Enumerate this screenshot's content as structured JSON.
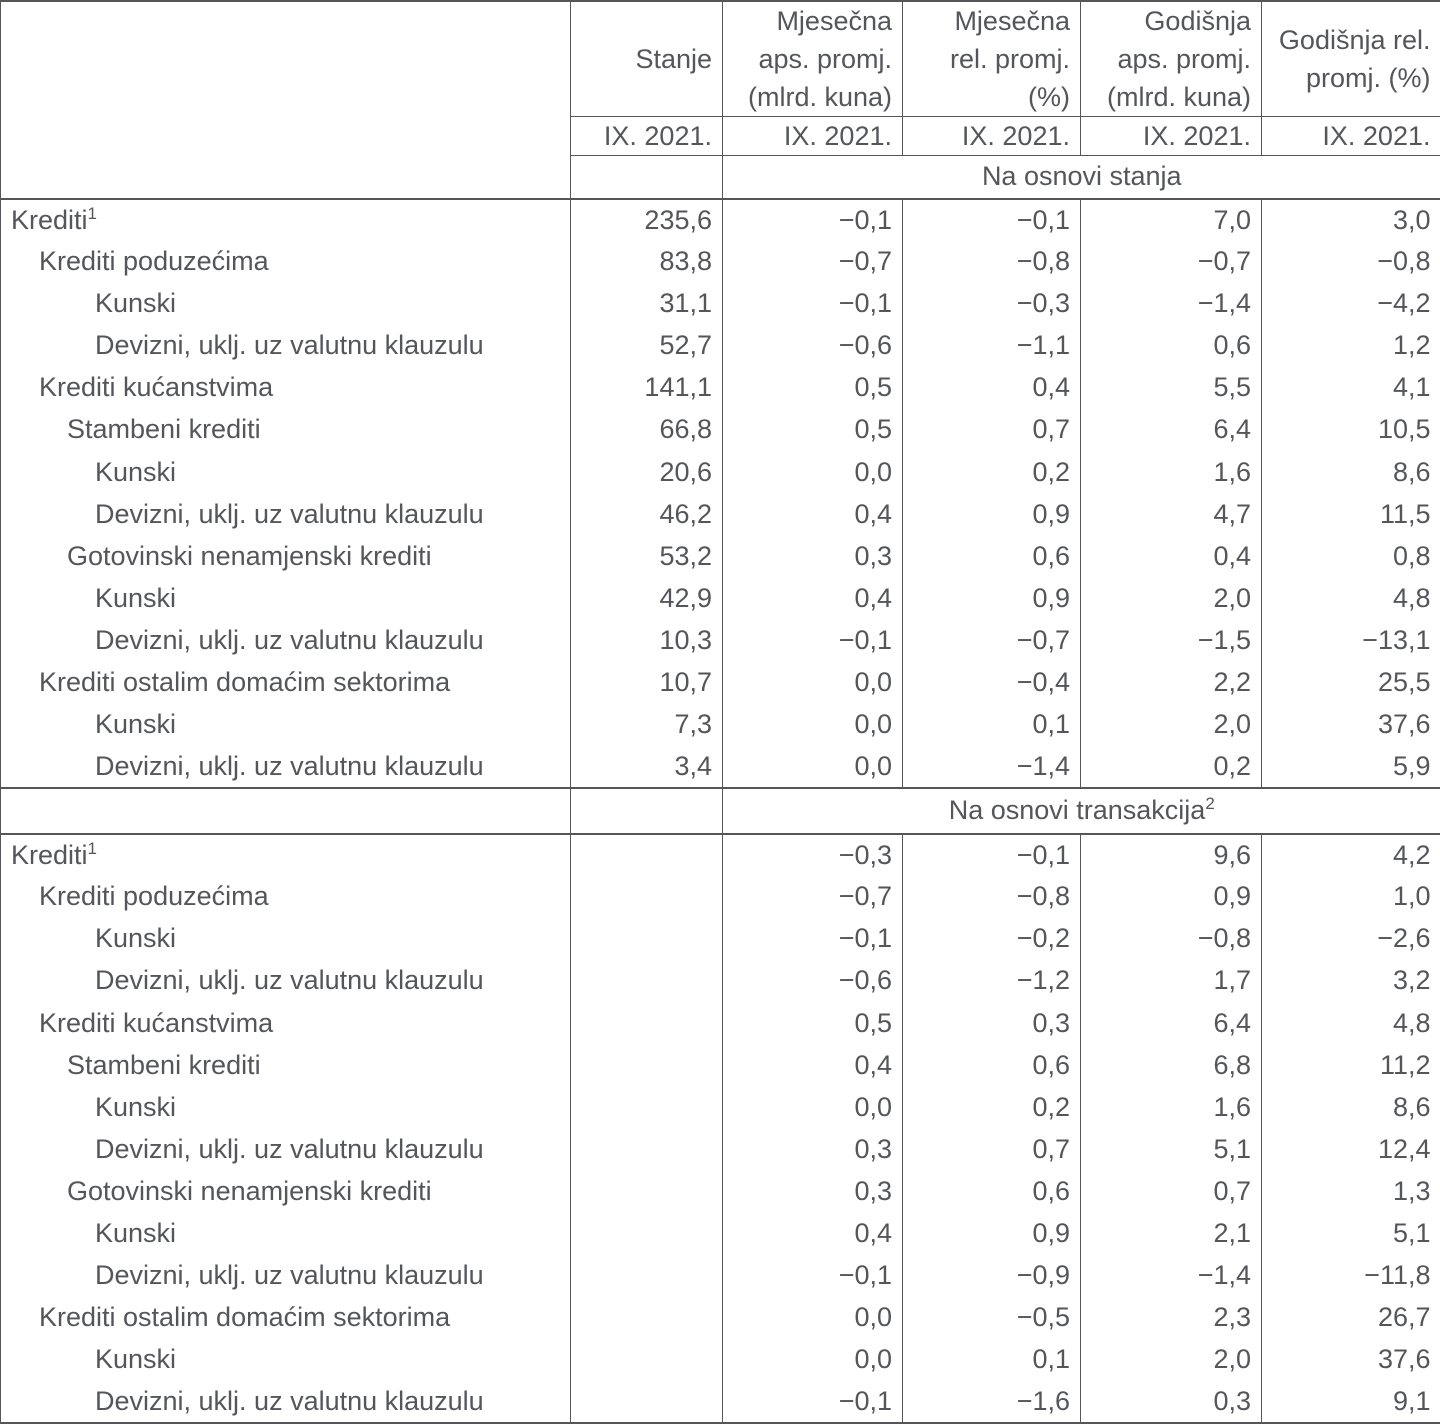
{
  "table": {
    "period": "IX. 2021.",
    "colors": {
      "text": "#54565a",
      "line": "#54565a",
      "background": "#ffffff"
    },
    "columns": [
      {
        "id": "stanje",
        "lines": [
          "Stanje"
        ]
      },
      {
        "id": "mjesecna_aps_promj",
        "lines": [
          "Mjesečna",
          "aps. promj.",
          "(mlrd. kuna)"
        ]
      },
      {
        "id": "mjesecna_rel_promj",
        "lines": [
          "Mjesečna",
          "rel. promj.",
          "(%)"
        ]
      },
      {
        "id": "godisnja_aps_promj",
        "lines": [
          "Godišnja",
          "aps. promj.",
          "(mlrd. kuna)"
        ]
      },
      {
        "id": "godisnja_rel_promj",
        "lines": [
          "Godišnja rel.",
          "promj. (%)"
        ]
      }
    ],
    "sections": [
      {
        "title": "Na osnovi stanja",
        "title_sup": "",
        "rows": [
          {
            "label": "Krediti",
            "sup": "1",
            "indent": 0,
            "values": [
              "235,6",
              "−0,1",
              "−0,1",
              "7,0",
              "3,0"
            ]
          },
          {
            "label": "Krediti poduzećima",
            "sup": "",
            "indent": 1,
            "values": [
              "83,8",
              "−0,7",
              "−0,8",
              "−0,7",
              "−0,8"
            ]
          },
          {
            "label": "Kunski",
            "sup": "",
            "indent": 3,
            "values": [
              "31,1",
              "−0,1",
              "−0,3",
              "−1,4",
              "−4,2"
            ]
          },
          {
            "label": "Devizni, uklj. uz valutnu klauzulu",
            "sup": "",
            "indent": 3,
            "values": [
              "52,7",
              "−0,6",
              "−1,1",
              "0,6",
              "1,2"
            ]
          },
          {
            "label": "Krediti kućanstvima",
            "sup": "",
            "indent": 1,
            "values": [
              "141,1",
              "0,5",
              "0,4",
              "5,5",
              "4,1"
            ]
          },
          {
            "label": "Stambeni krediti",
            "sup": "",
            "indent": 2,
            "values": [
              "66,8",
              "0,5",
              "0,7",
              "6,4",
              "10,5"
            ]
          },
          {
            "label": "Kunski",
            "sup": "",
            "indent": 3,
            "values": [
              "20,6",
              "0,0",
              "0,2",
              "1,6",
              "8,6"
            ]
          },
          {
            "label": "Devizni, uklj. uz valutnu klauzulu",
            "sup": "",
            "indent": 3,
            "values": [
              "46,2",
              "0,4",
              "0,9",
              "4,7",
              "11,5"
            ]
          },
          {
            "label": "Gotovinski nenamjenski krediti",
            "sup": "",
            "indent": 2,
            "values": [
              "53,2",
              "0,3",
              "0,6",
              "0,4",
              "0,8"
            ]
          },
          {
            "label": "Kunski",
            "sup": "",
            "indent": 3,
            "values": [
              "42,9",
              "0,4",
              "0,9",
              "2,0",
              "4,8"
            ]
          },
          {
            "label": "Devizni, uklj. uz valutnu klauzulu",
            "sup": "",
            "indent": 3,
            "values": [
              "10,3",
              "−0,1",
              "−0,7",
              "−1,5",
              "−13,1"
            ]
          },
          {
            "label": "Krediti ostalim domaćim sektorima",
            "sup": "",
            "indent": 1,
            "values": [
              "10,7",
              "0,0",
              "−0,4",
              "2,2",
              "25,5"
            ]
          },
          {
            "label": "Kunski",
            "sup": "",
            "indent": 3,
            "values": [
              "7,3",
              "0,0",
              "0,1",
              "2,0",
              "37,6"
            ]
          },
          {
            "label": "Devizni, uklj. uz valutnu klauzulu",
            "sup": "",
            "indent": 3,
            "values": [
              "3,4",
              "0,0",
              "−1,4",
              "0,2",
              "5,9"
            ]
          }
        ]
      },
      {
        "title": "Na osnovi transakcija",
        "title_sup": "2",
        "rows": [
          {
            "label": "Krediti",
            "sup": "1",
            "indent": 0,
            "values": [
              "",
              "−0,3",
              "−0,1",
              "9,6",
              "4,2"
            ]
          },
          {
            "label": "Krediti poduzećima",
            "sup": "",
            "indent": 1,
            "values": [
              "",
              "−0,7",
              "−0,8",
              "0,9",
              "1,0"
            ]
          },
          {
            "label": "Kunski",
            "sup": "",
            "indent": 3,
            "values": [
              "",
              "−0,1",
              "−0,2",
              "−0,8",
              "−2,6"
            ]
          },
          {
            "label": "Devizni, uklj. uz valutnu klauzulu",
            "sup": "",
            "indent": 3,
            "values": [
              "",
              "−0,6",
              "−1,2",
              "1,7",
              "3,2"
            ]
          },
          {
            "label": "Krediti kućanstvima",
            "sup": "",
            "indent": 1,
            "values": [
              "",
              "0,5",
              "0,3",
              "6,4",
              "4,8"
            ]
          },
          {
            "label": "Stambeni krediti",
            "sup": "",
            "indent": 2,
            "values": [
              "",
              "0,4",
              "0,6",
              "6,8",
              "11,2"
            ]
          },
          {
            "label": "Kunski",
            "sup": "",
            "indent": 3,
            "values": [
              "",
              "0,0",
              "0,2",
              "1,6",
              "8,6"
            ]
          },
          {
            "label": "Devizni, uklj. uz valutnu klauzulu",
            "sup": "",
            "indent": 3,
            "values": [
              "",
              "0,3",
              "0,7",
              "5,1",
              "12,4"
            ]
          },
          {
            "label": "Gotovinski nenamjenski krediti",
            "sup": "",
            "indent": 2,
            "values": [
              "",
              "0,3",
              "0,6",
              "0,7",
              "1,3"
            ]
          },
          {
            "label": "Kunski",
            "sup": "",
            "indent": 3,
            "values": [
              "",
              "0,4",
              "0,9",
              "2,1",
              "5,1"
            ]
          },
          {
            "label": "Devizni, uklj. uz valutnu klauzulu",
            "sup": "",
            "indent": 3,
            "values": [
              "",
              "−0,1",
              "−0,9",
              "−1,4",
              "−11,8"
            ]
          },
          {
            "label": "Krediti ostalim domaćim sektorima",
            "sup": "",
            "indent": 1,
            "values": [
              "",
              "0,0",
              "−0,5",
              "2,3",
              "26,7"
            ]
          },
          {
            "label": "Kunski",
            "sup": "",
            "indent": 3,
            "values": [
              "",
              "0,0",
              "0,1",
              "2,0",
              "37,6"
            ]
          },
          {
            "label": "Devizni, uklj. uz valutnu klauzulu",
            "sup": "",
            "indent": 3,
            "values": [
              "",
              "−0,1",
              "−1,6",
              "0,3",
              "9,1"
            ]
          }
        ]
      }
    ]
  }
}
